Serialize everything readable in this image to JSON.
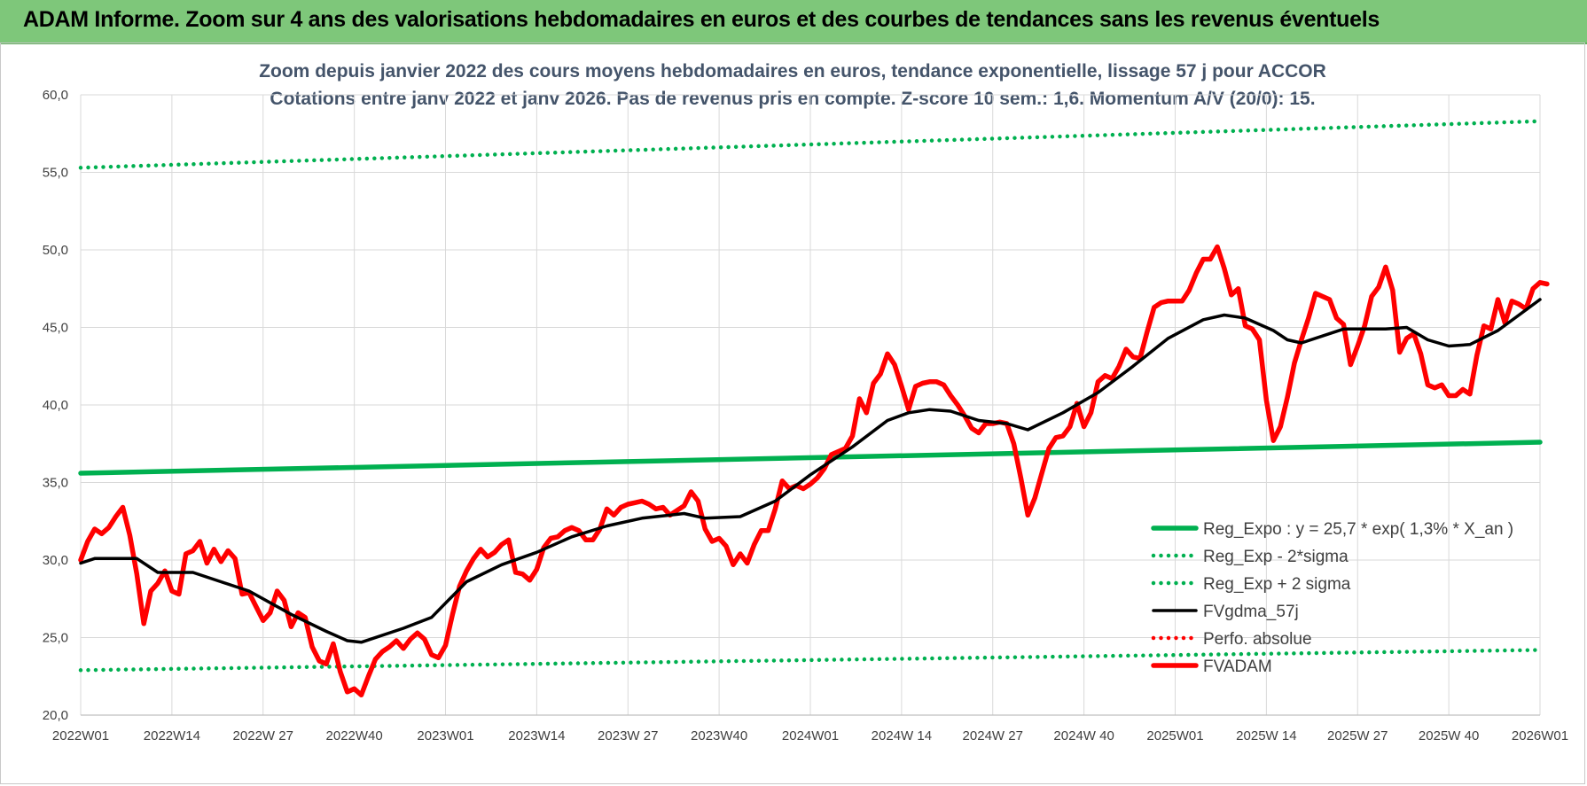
{
  "banner": {
    "title": "ADAM Informe. Zoom sur 4 ans des valorisations hebdomadaires en euros et des courbes de tendances sans les revenus éventuels"
  },
  "chart_data": {
    "type": "line",
    "title": "Zoom depuis janvier 2022 des cours moyens hebdomadaires en euros, tendance exponentielle, lissage 57 j pour ACCOR",
    "subtitle": "Cotations entre janv 2022 et janv 2026. Pas de revenus pris en compte. Z-score 10 sem.: 1,6. Momentum A/V (20/0): 15.",
    "xlabel": "",
    "ylabel": "",
    "ylim": [
      20,
      60
    ],
    "yticks": [
      "20,0",
      "25,0",
      "30,0",
      "35,0",
      "40,0",
      "45,0",
      "50,0",
      "55,0",
      "60,0"
    ],
    "x_range_weeks": [
      0,
      208
    ],
    "xticks": [
      {
        "week": 0,
        "label": "2022W01"
      },
      {
        "week": 13,
        "label": "2022W14"
      },
      {
        "week": 26,
        "label": "2022W 27"
      },
      {
        "week": 39,
        "label": "2022W40"
      },
      {
        "week": 52,
        "label": "2023W01"
      },
      {
        "week": 65,
        "label": "2023W14"
      },
      {
        "week": 78,
        "label": "2023W 27"
      },
      {
        "week": 91,
        "label": "2023W40"
      },
      {
        "week": 104,
        "label": "2024W01"
      },
      {
        "week": 117,
        "label": "2024W 14"
      },
      {
        "week": 130,
        "label": "2024W 27"
      },
      {
        "week": 143,
        "label": "2024W 40"
      },
      {
        "week": 156,
        "label": "2025W01"
      },
      {
        "week": 169,
        "label": "2025W 14"
      },
      {
        "week": 182,
        "label": "2025W 27"
      },
      {
        "week": 195,
        "label": "2025W 40"
      },
      {
        "week": 208,
        "label": "2026W01"
      }
    ],
    "grid": true,
    "legend_position": "bottom-right",
    "series": [
      {
        "name": "Reg_Expo : y = 25,7 * exp( 1,3% *  X_an )",
        "style": "solid-thick",
        "color": "#00b050",
        "points": [
          [
            0,
            35.6
          ],
          [
            208,
            37.6
          ]
        ]
      },
      {
        "name": "Reg_Exp - 2*sigma",
        "style": "dotted",
        "color": "#00b050",
        "points": [
          [
            0,
            22.9
          ],
          [
            208,
            24.2
          ]
        ]
      },
      {
        "name": "Reg_Exp + 2 sigma",
        "style": "dotted",
        "color": "#00b050",
        "points": [
          [
            0,
            55.3
          ],
          [
            208,
            58.3
          ]
        ]
      },
      {
        "name": "FVgdma_57j",
        "style": "solid",
        "color": "#000000",
        "points": [
          [
            0,
            29.8
          ],
          [
            2,
            30.1
          ],
          [
            8,
            30.1
          ],
          [
            11,
            29.2
          ],
          [
            16,
            29.2
          ],
          [
            24,
            28.0
          ],
          [
            30,
            26.5
          ],
          [
            35,
            25.4
          ],
          [
            38,
            24.8
          ],
          [
            40,
            24.7
          ],
          [
            46,
            25.6
          ],
          [
            50,
            26.3
          ],
          [
            55,
            28.6
          ],
          [
            60,
            29.7
          ],
          [
            65,
            30.5
          ],
          [
            70,
            31.5
          ],
          [
            75,
            32.2
          ],
          [
            80,
            32.7
          ],
          [
            86,
            33.0
          ],
          [
            89,
            32.7
          ],
          [
            94,
            32.8
          ],
          [
            99,
            33.8
          ],
          [
            104,
            35.5
          ],
          [
            110,
            37.3
          ],
          [
            115,
            39.0
          ],
          [
            118,
            39.5
          ],
          [
            121,
            39.7
          ],
          [
            124,
            39.6
          ],
          [
            128,
            39.0
          ],
          [
            132,
            38.8
          ],
          [
            135,
            38.4
          ],
          [
            140,
            39.5
          ],
          [
            145,
            40.8
          ],
          [
            150,
            42.5
          ],
          [
            155,
            44.3
          ],
          [
            160,
            45.5
          ],
          [
            163,
            45.8
          ],
          [
            166,
            45.6
          ],
          [
            170,
            44.8
          ],
          [
            172,
            44.2
          ],
          [
            174,
            44.0
          ],
          [
            180,
            44.9
          ],
          [
            186,
            44.9
          ],
          [
            189,
            45.0
          ],
          [
            192,
            44.2
          ],
          [
            195,
            43.8
          ],
          [
            198,
            43.9
          ],
          [
            202,
            44.8
          ],
          [
            205,
            45.8
          ],
          [
            208,
            46.8
          ]
        ]
      },
      {
        "name": "Perfo. absolue",
        "style": "dotted",
        "color": "#ff0000",
        "points": []
      },
      {
        "name": "FVADAM",
        "style": "solid-thick",
        "color": "#ff0000",
        "points": [
          [
            0,
            30.0
          ],
          [
            1,
            31.2
          ],
          [
            2,
            32.0
          ],
          [
            3,
            31.7
          ],
          [
            4,
            32.1
          ],
          [
            5,
            32.8
          ],
          [
            6,
            33.4
          ],
          [
            7,
            31.6
          ],
          [
            8,
            29.1
          ],
          [
            9,
            25.9
          ],
          [
            10,
            28.0
          ],
          [
            11,
            28.5
          ],
          [
            12,
            29.3
          ],
          [
            13,
            28.0
          ],
          [
            14,
            27.8
          ],
          [
            15,
            30.4
          ],
          [
            16,
            30.6
          ],
          [
            17,
            31.2
          ],
          [
            18,
            29.8
          ],
          [
            19,
            30.7
          ],
          [
            20,
            29.9
          ],
          [
            21,
            30.6
          ],
          [
            22,
            30.1
          ],
          [
            23,
            27.8
          ],
          [
            24,
            27.9
          ],
          [
            25,
            27.0
          ],
          [
            26,
            26.1
          ],
          [
            27,
            26.6
          ],
          [
            28,
            28.0
          ],
          [
            29,
            27.4
          ],
          [
            30,
            25.7
          ],
          [
            31,
            26.6
          ],
          [
            32,
            26.3
          ],
          [
            33,
            24.4
          ],
          [
            34,
            23.5
          ],
          [
            35,
            23.3
          ],
          [
            36,
            24.6
          ],
          [
            37,
            22.8
          ],
          [
            38,
            21.5
          ],
          [
            39,
            21.7
          ],
          [
            40,
            21.3
          ],
          [
            41,
            22.5
          ],
          [
            42,
            23.6
          ],
          [
            43,
            24.1
          ],
          [
            44,
            24.4
          ],
          [
            45,
            24.8
          ],
          [
            46,
            24.3
          ],
          [
            47,
            24.9
          ],
          [
            48,
            25.3
          ],
          [
            49,
            24.9
          ],
          [
            50,
            23.9
          ],
          [
            51,
            23.7
          ],
          [
            52,
            24.5
          ],
          [
            53,
            26.5
          ],
          [
            54,
            28.3
          ],
          [
            55,
            29.3
          ],
          [
            56,
            30.1
          ],
          [
            57,
            30.7
          ],
          [
            58,
            30.2
          ],
          [
            59,
            30.5
          ],
          [
            60,
            31.0
          ],
          [
            61,
            31.3
          ],
          [
            62,
            29.2
          ],
          [
            63,
            29.1
          ],
          [
            64,
            28.7
          ],
          [
            65,
            29.4
          ],
          [
            66,
            30.8
          ],
          [
            67,
            31.4
          ],
          [
            68,
            31.5
          ],
          [
            69,
            31.9
          ],
          [
            70,
            32.1
          ],
          [
            71,
            31.9
          ],
          [
            72,
            31.3
          ],
          [
            73,
            31.3
          ],
          [
            74,
            32.0
          ],
          [
            75,
            33.3
          ],
          [
            76,
            32.9
          ],
          [
            77,
            33.4
          ],
          [
            78,
            33.6
          ],
          [
            79,
            33.7
          ],
          [
            80,
            33.8
          ],
          [
            81,
            33.6
          ],
          [
            82,
            33.3
          ],
          [
            83,
            33.4
          ],
          [
            84,
            32.9
          ],
          [
            85,
            33.2
          ],
          [
            86,
            33.5
          ],
          [
            87,
            34.4
          ],
          [
            88,
            33.8
          ],
          [
            89,
            32.0
          ],
          [
            90,
            31.2
          ],
          [
            91,
            31.4
          ],
          [
            92,
            30.9
          ],
          [
            93,
            29.7
          ],
          [
            94,
            30.4
          ],
          [
            95,
            29.8
          ],
          [
            96,
            31.0
          ],
          [
            97,
            31.9
          ],
          [
            98,
            31.9
          ],
          [
            99,
            33.3
          ],
          [
            100,
            35.1
          ],
          [
            101,
            34.6
          ],
          [
            102,
            34.8
          ],
          [
            103,
            34.6
          ],
          [
            104,
            34.9
          ],
          [
            105,
            35.3
          ],
          [
            106,
            35.9
          ],
          [
            107,
            36.8
          ],
          [
            108,
            37.0
          ],
          [
            109,
            37.2
          ],
          [
            110,
            38.0
          ],
          [
            111,
            40.4
          ],
          [
            112,
            39.5
          ],
          [
            113,
            41.4
          ],
          [
            114,
            42.0
          ],
          [
            115,
            43.3
          ],
          [
            116,
            42.6
          ],
          [
            117,
            41.2
          ],
          [
            118,
            39.7
          ],
          [
            119,
            41.2
          ],
          [
            120,
            41.4
          ],
          [
            121,
            41.5
          ],
          [
            122,
            41.5
          ],
          [
            123,
            41.3
          ],
          [
            124,
            40.6
          ],
          [
            125,
            40.0
          ],
          [
            126,
            39.3
          ],
          [
            127,
            38.5
          ],
          [
            128,
            38.2
          ],
          [
            129,
            38.8
          ],
          [
            130,
            38.8
          ],
          [
            131,
            38.9
          ],
          [
            132,
            38.8
          ],
          [
            133,
            37.5
          ],
          [
            134,
            35.3
          ],
          [
            135,
            32.9
          ],
          [
            136,
            34.0
          ],
          [
            137,
            35.6
          ],
          [
            138,
            37.2
          ],
          [
            139,
            37.9
          ],
          [
            140,
            38.0
          ],
          [
            141,
            38.6
          ],
          [
            142,
            40.1
          ],
          [
            143,
            38.6
          ],
          [
            144,
            39.5
          ],
          [
            145,
            41.5
          ],
          [
            146,
            41.9
          ],
          [
            147,
            41.7
          ],
          [
            148,
            42.5
          ],
          [
            149,
            43.6
          ],
          [
            150,
            43.1
          ],
          [
            151,
            43.0
          ],
          [
            152,
            44.7
          ],
          [
            153,
            46.3
          ],
          [
            154,
            46.6
          ],
          [
            155,
            46.7
          ],
          [
            156,
            46.7
          ],
          [
            157,
            46.7
          ],
          [
            158,
            47.4
          ],
          [
            159,
            48.5
          ],
          [
            160,
            49.4
          ],
          [
            161,
            49.4
          ],
          [
            162,
            50.2
          ],
          [
            163,
            48.8
          ],
          [
            164,
            47.1
          ],
          [
            165,
            47.5
          ],
          [
            166,
            45.1
          ],
          [
            167,
            44.9
          ],
          [
            168,
            44.2
          ],
          [
            169,
            40.3
          ],
          [
            170,
            37.7
          ],
          [
            171,
            38.6
          ],
          [
            172,
            40.5
          ],
          [
            173,
            42.7
          ],
          [
            174,
            44.2
          ],
          [
            175,
            45.6
          ],
          [
            176,
            47.2
          ],
          [
            177,
            47.0
          ],
          [
            178,
            46.8
          ],
          [
            179,
            45.6
          ],
          [
            180,
            45.2
          ],
          [
            181,
            42.6
          ],
          [
            182,
            43.8
          ],
          [
            183,
            45.1
          ],
          [
            184,
            47.0
          ],
          [
            185,
            47.6
          ],
          [
            186,
            48.9
          ],
          [
            187,
            47.4
          ],
          [
            188,
            43.4
          ],
          [
            189,
            44.3
          ],
          [
            190,
            44.6
          ],
          [
            191,
            43.3
          ],
          [
            192,
            41.3
          ],
          [
            193,
            41.1
          ],
          [
            194,
            41.3
          ],
          [
            195,
            40.6
          ],
          [
            196,
            40.6
          ],
          [
            197,
            41.0
          ],
          [
            198,
            40.7
          ],
          [
            199,
            43.2
          ],
          [
            200,
            45.1
          ],
          [
            201,
            44.9
          ],
          [
            202,
            46.8
          ],
          [
            203,
            45.3
          ],
          [
            204,
            46.7
          ],
          [
            205,
            46.5
          ],
          [
            206,
            46.2
          ],
          [
            207,
            47.5
          ],
          [
            208,
            47.9
          ],
          [
            209,
            47.8
          ]
        ]
      }
    ]
  }
}
